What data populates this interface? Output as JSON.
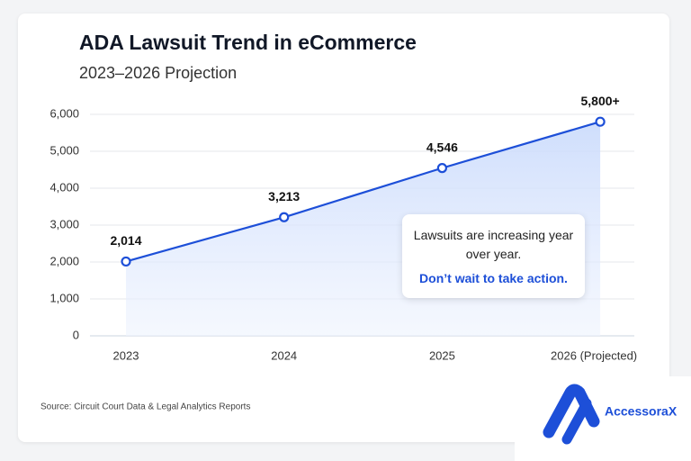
{
  "chart_data": {
    "type": "line",
    "title": "ADA Lawsuit Trend in eCommerce",
    "subtitle": "2023–2026 Projection",
    "categories": [
      "2023",
      "2024",
      "2025",
      "2026 (Projected)"
    ],
    "values": [
      2014,
      3213,
      4546,
      5800
    ],
    "value_labels": [
      "2,014",
      "3,213",
      "4,546",
      "5,800+"
    ],
    "color": "#1d4fd8",
    "ylim": [
      0,
      6000
    ],
    "yticks": [
      0,
      {
        "value": 1000,
        "label": "1,000"
      },
      {
        "value": 2000,
        "label": "2,000"
      },
      {
        "value": 3000,
        "label": "3,000"
      },
      {
        "value": 4000,
        "label": "4,000"
      },
      {
        "value": 5000,
        "label": "5,000"
      },
      {
        "value": 6000,
        "label": "6,000"
      }
    ],
    "grid": true
  },
  "annotation": {
    "text": "Lawsuits are increasing year over year.",
    "cta": "Don’t wait to take action."
  },
  "source": "Source: Circuit Court Data & Legal Analytics Reports",
  "brand": "AccessoraX"
}
